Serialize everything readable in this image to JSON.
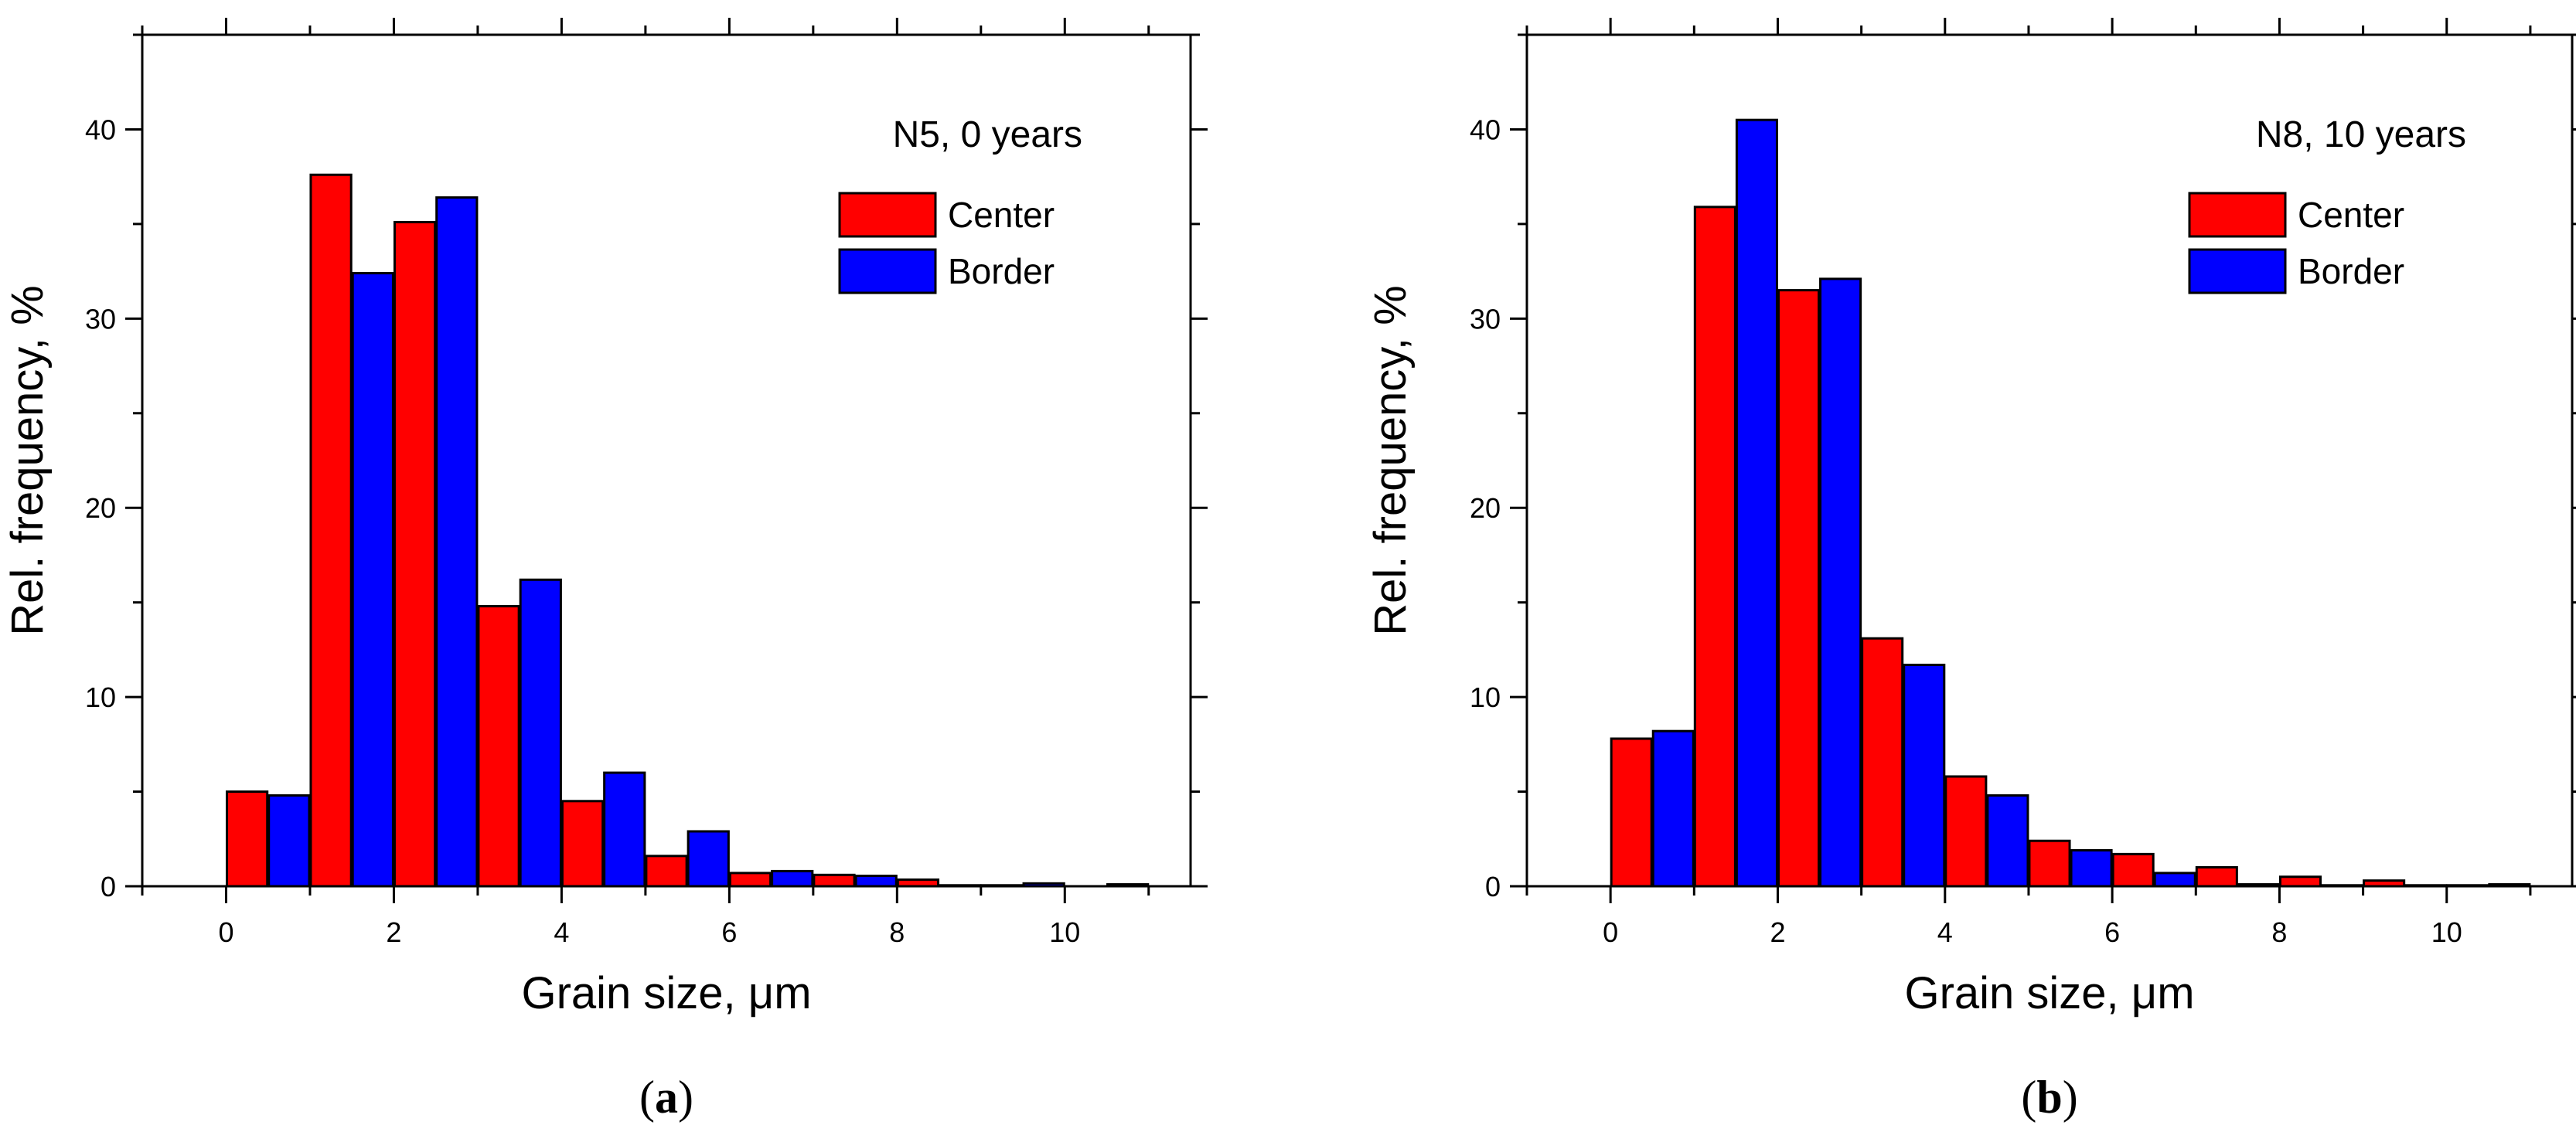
{
  "colors": {
    "center": "#ff0000",
    "border": "#0000ff",
    "axis": "#000000",
    "background": "#ffffff"
  },
  "chart_data": [
    {
      "id": "a",
      "type": "bar",
      "caption_open": "(",
      "caption_letter": "a",
      "caption_close": ")",
      "legend_title": "N5, 0 years",
      "xlabel": "Grain size, μm",
      "ylabel": "Rel. frequency, %",
      "xlim": [
        -1,
        11.5
      ],
      "ylim": [
        0,
        45
      ],
      "xticks": [
        0,
        2,
        4,
        6,
        8,
        10
      ],
      "xtick_labels": [
        "0",
        "2",
        "4",
        "6",
        "8",
        "10"
      ],
      "yticks": [
        0,
        10,
        20,
        30,
        40
      ],
      "ytick_labels": [
        "0",
        "10",
        "20",
        "30",
        "40"
      ],
      "bin_starts": [
        0,
        1,
        2,
        3,
        4,
        5,
        6,
        7,
        8,
        9,
        10
      ],
      "bin_width": 1,
      "series": [
        {
          "name": "Center",
          "key": "center",
          "values": [
            5.0,
            37.6,
            35.1,
            14.8,
            4.5,
            1.6,
            0.7,
            0.6,
            0.35,
            0.05,
            0.0
          ]
        },
        {
          "name": "Border",
          "key": "border",
          "values": [
            4.8,
            32.4,
            36.4,
            16.2,
            6.0,
            2.9,
            0.8,
            0.55,
            0.05,
            0.15,
            0.1
          ]
        }
      ]
    },
    {
      "id": "b",
      "type": "bar",
      "caption_open": "(",
      "caption_letter": "b",
      "caption_close": ")",
      "legend_title": "N8, 10 years",
      "xlabel": "Grain size, μm",
      "ylabel": "Rel. frequency, %",
      "xlim": [
        -1,
        11.5
      ],
      "ylim": [
        0,
        45
      ],
      "xticks": [
        0,
        2,
        4,
        6,
        8,
        10
      ],
      "xtick_labels": [
        "0",
        "2",
        "4",
        "6",
        "8",
        "10"
      ],
      "yticks": [
        0,
        10,
        20,
        30,
        40
      ],
      "ytick_labels": [
        "0",
        "10",
        "20",
        "30",
        "40"
      ],
      "bin_starts": [
        0,
        1,
        2,
        3,
        4,
        5,
        6,
        7,
        8,
        9,
        10
      ],
      "bin_width": 1,
      "series": [
        {
          "name": "Center",
          "key": "center",
          "values": [
            7.8,
            35.9,
            31.5,
            13.1,
            5.8,
            2.4,
            1.7,
            1.0,
            0.5,
            0.3,
            0.05
          ]
        },
        {
          "name": "Border",
          "key": "border",
          "values": [
            8.2,
            40.5,
            32.1,
            11.7,
            4.8,
            1.9,
            0.7,
            0.1,
            0.05,
            0.05,
            0.1
          ]
        }
      ]
    }
  ]
}
